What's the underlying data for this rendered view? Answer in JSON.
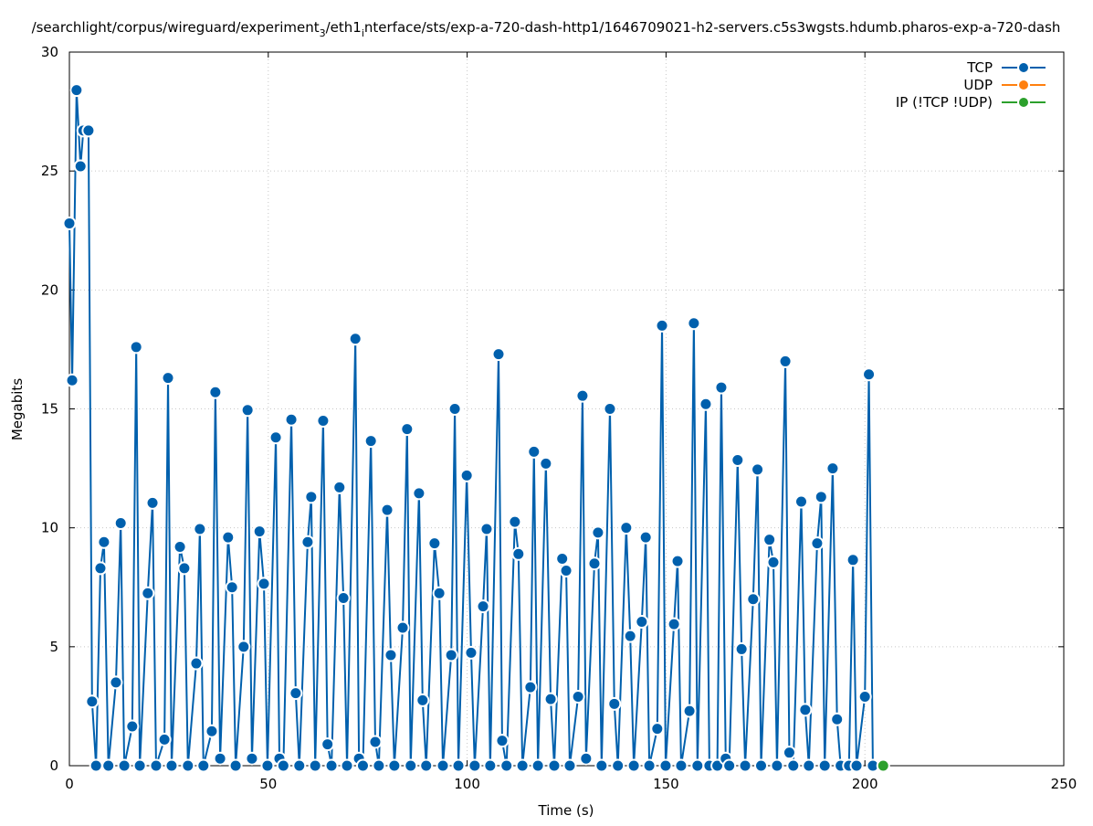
{
  "chart_data": {
    "type": "line",
    "title_parts": [
      "/searchlight/corpus/wireguard/experiment",
      "3",
      "/eth1",
      "i",
      "nterface/sts/exp-a-720-dash-http1/1646709021-h2-servers.c5s3wgsts.hdumb.pharos-exp-a-720-dash"
    ],
    "xlabel": "Time (s)",
    "ylabel": "Megabits",
    "xlim": [
      0,
      250
    ],
    "ylim": [
      0,
      30
    ],
    "xticks": [
      "0",
      "50",
      "100",
      "150",
      "200",
      "250"
    ],
    "yticks": [
      "0",
      "5",
      "10",
      "15",
      "20",
      "25",
      "30"
    ],
    "grid": true,
    "legend_placement": "top-right",
    "series": [
      {
        "name": "TCP",
        "color": "#0060ad",
        "points": [
          [
            0,
            22.8
          ],
          [
            0.7,
            16.2
          ],
          [
            1.8,
            28.4
          ],
          [
            2.8,
            25.2
          ],
          [
            3.5,
            26.7
          ],
          [
            4.8,
            26.7
          ],
          [
            5.7,
            2.7
          ],
          [
            6.7,
            0
          ],
          [
            7.8,
            8.3
          ],
          [
            8.7,
            9.4
          ],
          [
            9.8,
            0
          ],
          [
            11.7,
            3.5
          ],
          [
            12.9,
            10.2
          ],
          [
            13.8,
            0
          ],
          [
            15.8,
            1.65
          ],
          [
            16.8,
            17.6
          ],
          [
            17.7,
            0
          ],
          [
            19.7,
            7.25
          ],
          [
            20.9,
            11.05
          ],
          [
            21.8,
            0
          ],
          [
            23.9,
            1.1
          ],
          [
            24.8,
            16.3
          ],
          [
            25.7,
            0
          ],
          [
            27.8,
            9.2
          ],
          [
            28.9,
            8.3
          ],
          [
            29.8,
            0
          ],
          [
            31.9,
            4.3
          ],
          [
            32.8,
            9.95
          ],
          [
            33.7,
            0
          ],
          [
            35.8,
            1.45
          ],
          [
            36.7,
            15.7
          ],
          [
            37.9,
            0.3
          ],
          [
            39.9,
            9.6
          ],
          [
            40.9,
            7.5
          ],
          [
            41.8,
            0
          ],
          [
            43.8,
            5.0
          ],
          [
            44.8,
            14.95
          ],
          [
            45.9,
            0.3
          ],
          [
            47.8,
            9.85
          ],
          [
            48.9,
            7.65
          ],
          [
            49.8,
            0
          ],
          [
            51.9,
            13.8
          ],
          [
            52.8,
            0.3
          ],
          [
            53.8,
            0
          ],
          [
            55.8,
            14.55
          ],
          [
            56.9,
            3.05
          ],
          [
            57.8,
            0
          ],
          [
            59.9,
            9.4
          ],
          [
            60.8,
            11.3
          ],
          [
            61.8,
            0
          ],
          [
            63.8,
            14.5
          ],
          [
            64.9,
            0.9
          ],
          [
            65.9,
            0
          ],
          [
            67.9,
            11.7
          ],
          [
            68.9,
            7.05
          ],
          [
            69.8,
            0
          ],
          [
            71.9,
            17.95
          ],
          [
            72.8,
            0.3
          ],
          [
            73.8,
            0
          ],
          [
            75.8,
            13.65
          ],
          [
            76.9,
            1.0
          ],
          [
            77.8,
            0
          ],
          [
            79.9,
            10.75
          ],
          [
            80.8,
            4.65
          ],
          [
            81.7,
            0
          ],
          [
            83.8,
            5.8
          ],
          [
            84.9,
            14.15
          ],
          [
            85.8,
            0
          ],
          [
            87.9,
            11.45
          ],
          [
            88.8,
            2.75
          ],
          [
            89.7,
            0
          ],
          [
            91.8,
            9.35
          ],
          [
            93.0,
            7.25
          ],
          [
            93.9,
            0
          ],
          [
            96.0,
            4.65
          ],
          [
            96.9,
            15.0
          ],
          [
            97.8,
            0
          ],
          [
            99.9,
            12.2
          ],
          [
            101.0,
            4.75
          ],
          [
            101.9,
            0
          ],
          [
            104.0,
            6.7
          ],
          [
            104.9,
            9.95
          ],
          [
            105.8,
            0
          ],
          [
            107.9,
            17.3
          ],
          [
            108.8,
            1.05
          ],
          [
            109.9,
            0
          ],
          [
            112.0,
            10.25
          ],
          [
            112.9,
            8.9
          ],
          [
            113.9,
            0
          ],
          [
            115.9,
            3.3
          ],
          [
            116.8,
            13.2
          ],
          [
            117.8,
            0
          ],
          [
            119.8,
            12.7
          ],
          [
            121.0,
            2.8
          ],
          [
            121.9,
            0
          ],
          [
            123.9,
            8.7
          ],
          [
            124.9,
            8.2
          ],
          [
            125.8,
            0
          ],
          [
            127.9,
            2.9
          ],
          [
            129.0,
            15.55
          ],
          [
            129.9,
            0.3
          ],
          [
            132.0,
            8.5
          ],
          [
            132.9,
            9.8
          ],
          [
            133.8,
            0
          ],
          [
            135.9,
            15.0
          ],
          [
            137.0,
            2.6
          ],
          [
            137.9,
            0
          ],
          [
            140.0,
            10.0
          ],
          [
            141.0,
            5.45
          ],
          [
            141.9,
            0
          ],
          [
            143.9,
            6.05
          ],
          [
            144.9,
            9.6
          ],
          [
            145.8,
            0
          ],
          [
            147.8,
            1.55
          ],
          [
            149.0,
            18.5
          ],
          [
            149.9,
            0
          ],
          [
            152.0,
            5.95
          ],
          [
            152.9,
            8.6
          ],
          [
            153.8,
            0
          ],
          [
            155.9,
            2.3
          ],
          [
            157.0,
            18.6
          ],
          [
            157.9,
            0
          ],
          [
            160.0,
            15.2
          ],
          [
            160.9,
            0
          ],
          [
            162.9,
            0
          ],
          [
            163.9,
            15.9
          ],
          [
            165.0,
            0.3
          ],
          [
            165.9,
            0
          ],
          [
            168.0,
            12.85
          ],
          [
            169.0,
            4.9
          ],
          [
            169.9,
            0
          ],
          [
            171.9,
            7.0
          ],
          [
            173.0,
            12.45
          ],
          [
            173.9,
            0
          ],
          [
            176.0,
            9.5
          ],
          [
            177.0,
            8.55
          ],
          [
            177.9,
            0
          ],
          [
            180.0,
            17.0
          ],
          [
            181.0,
            0.55
          ],
          [
            182.0,
            0
          ],
          [
            184.0,
            11.1
          ],
          [
            185.0,
            2.35
          ],
          [
            185.9,
            0
          ],
          [
            188.0,
            9.35
          ],
          [
            189.0,
            11.3
          ],
          [
            189.9,
            0
          ],
          [
            191.9,
            12.5
          ],
          [
            193.0,
            1.95
          ],
          [
            193.9,
            0
          ],
          [
            196.0,
            0
          ],
          [
            197.0,
            8.65
          ],
          [
            197.9,
            0
          ],
          [
            200.0,
            2.9
          ],
          [
            201.0,
            16.45
          ],
          [
            202.0,
            0
          ]
        ]
      },
      {
        "name": "UDP",
        "color": "#ff7f0e",
        "points": []
      },
      {
        "name": "IP (!TCP  !UDP)",
        "color": "#2ca02c",
        "points": [
          [
            204.6,
            0
          ]
        ]
      }
    ]
  }
}
